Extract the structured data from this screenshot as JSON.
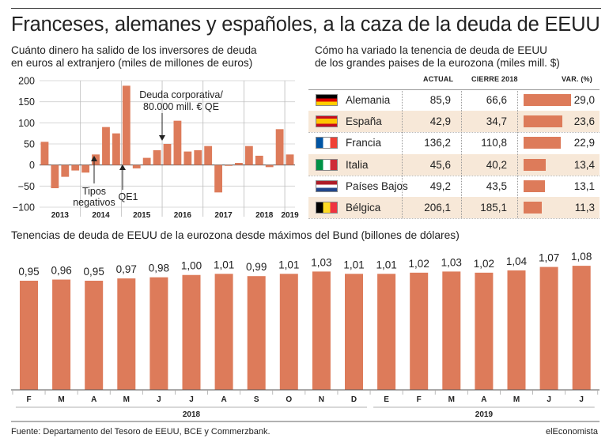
{
  "title": "Franceses, alemanes y españoles, a la caza de la deuda de EEUU",
  "left_chart": {
    "subtitle_lines": [
      "Cuánto dinero ha salido de los inversores de deuda",
      "en euros al extranjero (miles de millones de euros)"
    ],
    "annotations": {
      "corp_line1": "Deuda corporativa/",
      "corp_line2": "80.000 mill. € QE",
      "tipos_line1": "Tipos",
      "tipos_line2": "negativos",
      "qe1": "QE1"
    }
  },
  "table": {
    "subtitle_lines": [
      "Cómo ha variado la tenencia de deuda de EEUU",
      "de los grandes paises de la eurozona (miles mill. $)"
    ],
    "headers": {
      "actual": "ACTUAL",
      "cierre": "CIERRE 2018",
      "var": "VAR. (%)"
    },
    "rows": [
      {
        "country": "Alemania",
        "flag": "germany-flag",
        "actual": "85,9",
        "cierre": "66,6",
        "var": "29,0",
        "var_value": 29.0
      },
      {
        "country": "España",
        "flag": "spain-flag",
        "actual": "42,9",
        "cierre": "34,7",
        "var": "23,6",
        "var_value": 23.6
      },
      {
        "country": "Francia",
        "flag": "france-flag",
        "actual": "136,2",
        "cierre": "110,8",
        "var": "22,9",
        "var_value": 22.9
      },
      {
        "country": "Italia",
        "flag": "italy-flag",
        "actual": "45,6",
        "cierre": "40,2",
        "var": "13,4",
        "var_value": 13.4
      },
      {
        "country": "Países Bajos",
        "flag": "netherlands-flag",
        "actual": "49,2",
        "cierre": "43,5",
        "var": "13,1",
        "var_value": 13.1
      },
      {
        "country": "Bélgica",
        "flag": "belgium-flag",
        "actual": "206,1",
        "cierre": "185,1",
        "var": "11,3",
        "var_value": 11.3
      }
    ],
    "colors": {
      "row_alt": "#f7e8d8",
      "bar": "#dd7b5a"
    }
  },
  "bottom_chart": {
    "subtitle": "Tenencias de deuda de EEUU de la eurozona desde máximos del Bund (billones de dólares)"
  },
  "footer": {
    "source": "Fuente: Departamento del Tesoro de EEUU, BCE y Commerzbank.",
    "brand": "elEconomista"
  },
  "colors": {
    "bar": "#dd7b5a"
  },
  "chart_data": [
    {
      "type": "bar",
      "title": "Cuánto dinero ha salido de los inversores de deuda en euros al extranjero (miles de millones de euros)",
      "ylim": [
        -100,
        200
      ],
      "yticks": [
        200,
        150,
        100,
        50,
        0,
        -50,
        -100
      ],
      "year_labels": [
        "2013",
        "2014",
        "2015",
        "2016",
        "2017",
        "2018",
        "2019"
      ],
      "year_starts": [
        0,
        4,
        8,
        12,
        16,
        20,
        24
      ],
      "bars_per_year": 4,
      "values": [
        55,
        -55,
        -28,
        -13,
        -18,
        25,
        90,
        75,
        188,
        -8,
        17,
        35,
        50,
        105,
        32,
        35,
        45,
        -65,
        -2,
        5,
        45,
        22,
        -5,
        85,
        25
      ],
      "annotations": [
        {
          "bar_index": 12,
          "text": "Deuda corporativa/ 80.000 mill. € QE"
        },
        {
          "bar_index": 5,
          "text": "Tipos negativos"
        },
        {
          "bar_index": 8,
          "text": "QE1"
        }
      ]
    },
    {
      "type": "bar",
      "title": "Tenencias de deuda de EEUU de la eurozona desde máximos del Bund (billones de dólares)",
      "categories": [
        "F",
        "M",
        "A",
        "M",
        "J",
        "J",
        "A",
        "S",
        "O",
        "N",
        "D",
        "E",
        "F",
        "M",
        "A",
        "M",
        "J",
        "J"
      ],
      "values": [
        0.95,
        0.96,
        0.95,
        0.97,
        0.98,
        1.0,
        1.01,
        0.99,
        1.01,
        1.03,
        1.01,
        1.01,
        1.02,
        1.03,
        1.02,
        1.04,
        1.07,
        1.08
      ],
      "labels": [
        "0,95",
        "0,96",
        "0,95",
        "0,97",
        "0,98",
        "1,00",
        "1,01",
        "0,99",
        "1,01",
        "1,03",
        "1,01",
        "1,01",
        "1,02",
        "1,03",
        "1,02",
        "1,04",
        "1,07",
        "1,08"
      ],
      "groups": [
        {
          "label": "2018",
          "from": 0,
          "to": 10
        },
        {
          "label": "2019",
          "from": 11,
          "to": 17
        }
      ]
    }
  ]
}
